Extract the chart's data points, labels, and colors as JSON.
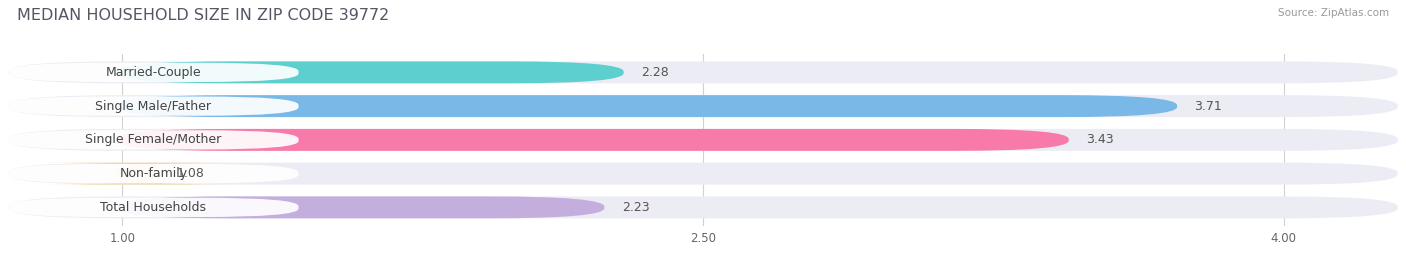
{
  "title": "MEDIAN HOUSEHOLD SIZE IN ZIP CODE 39772",
  "source": "Source: ZipAtlas.com",
  "categories": [
    "Married-Couple",
    "Single Male/Father",
    "Single Female/Mother",
    "Non-family",
    "Total Households"
  ],
  "values": [
    2.28,
    3.71,
    3.43,
    1.08,
    2.23
  ],
  "bar_colors": [
    "#5ecfcf",
    "#7ab8e8",
    "#f87aab",
    "#f8d4a0",
    "#c4aedd"
  ],
  "background_color": "#ffffff",
  "bar_bg_color": "#ececf4",
  "bar_outer_bg": "#f5f5fa",
  "xlim_data": [
    0.72,
    4.28
  ],
  "x_min": 1.0,
  "x_max": 4.0,
  "xticks": [
    1.0,
    2.5,
    4.0
  ],
  "title_fontsize": 11.5,
  "label_fontsize": 9,
  "value_fontsize": 9,
  "bar_height": 0.62,
  "bar_gap": 0.18
}
